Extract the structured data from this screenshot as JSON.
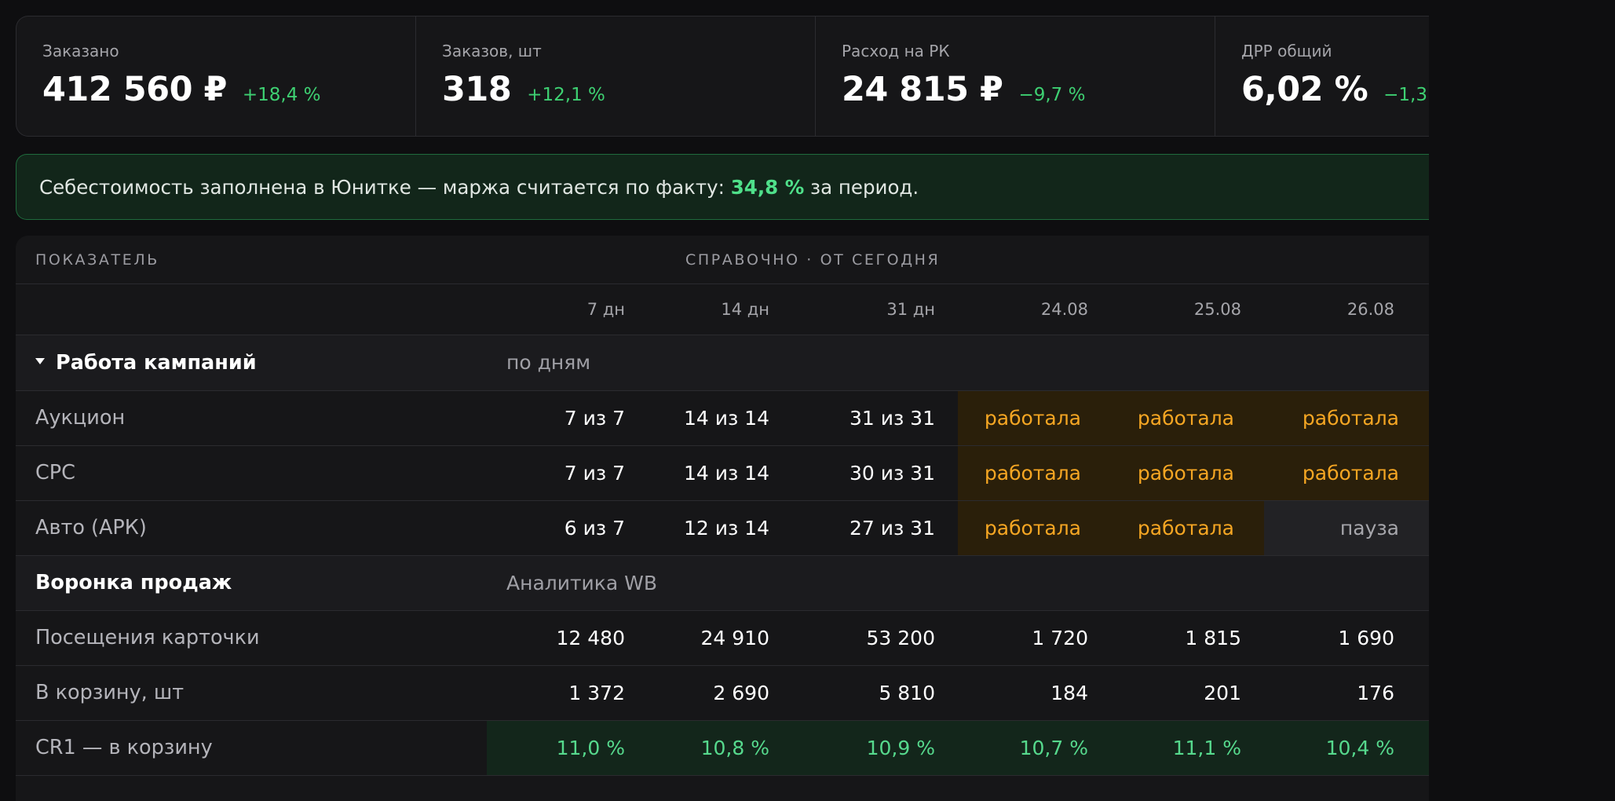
{
  "kpis": [
    {
      "label": "Заказано",
      "value": "412 560 ₽",
      "delta": "+18,4 %"
    },
    {
      "label": "Заказов, шт",
      "value": "318",
      "delta": "+12,1 %"
    },
    {
      "label": "Расход на РК",
      "value": "24 815 ₽",
      "delta": "−9,7 %"
    },
    {
      "label": "ДРР общий",
      "value": "6,02 %",
      "delta": "−1,3"
    }
  ],
  "notice": {
    "text": "Себестоимость заполнена в Юнитке — маржа считается по факту:",
    "highlight": "34,8 %",
    "suffix": "за период."
  },
  "table": {
    "header_left": "Показатель",
    "header_group": "Справочно · от сегодня",
    "columns": [
      "7 дн",
      "14 дн",
      "31 дн",
      "24.08",
      "25.08",
      "26.08"
    ],
    "section1": {
      "title": "Работа кампаний",
      "subtitle": "по дням"
    },
    "campaign_rows": [
      {
        "label": "Аукцион",
        "summary": [
          "7 из 7",
          "14 из 14",
          "31 из 31"
        ],
        "days": [
          {
            "text": "работала",
            "state": "on"
          },
          {
            "text": "работала",
            "state": "on"
          },
          {
            "text": "работала",
            "state": "on"
          }
        ]
      },
      {
        "label": "CPC",
        "summary": [
          "7 из 7",
          "14 из 14",
          "30 из 31"
        ],
        "days": [
          {
            "text": "работала",
            "state": "on"
          },
          {
            "text": "работала",
            "state": "on"
          },
          {
            "text": "работала",
            "state": "on"
          }
        ]
      },
      {
        "label": "Авто (АРК)",
        "summary": [
          "6 из 7",
          "12 из 14",
          "27 из 31"
        ],
        "days": [
          {
            "text": "работала",
            "state": "on"
          },
          {
            "text": "работала",
            "state": "on"
          },
          {
            "text": "пауза",
            "state": "off"
          }
        ]
      }
    ],
    "section2": {
      "title": "Воронка продаж",
      "subtitle": "Аналитика WB"
    },
    "funnel_rows": [
      {
        "label": "Посещения карточки",
        "values": [
          "12 480",
          "24 910",
          "53 200",
          "1 720",
          "1 815",
          "1 690"
        ]
      },
      {
        "label": "В корзину, шт",
        "values": [
          "1 372",
          "2 690",
          "5 810",
          "184",
          "201",
          "176"
        ]
      },
      {
        "label": "CR1 — в корзину",
        "values": [
          "11,0 %",
          "10,8 %",
          "10,9 %",
          "10,7 %",
          "11,1 %",
          "10,4 %"
        ]
      }
    ]
  }
}
